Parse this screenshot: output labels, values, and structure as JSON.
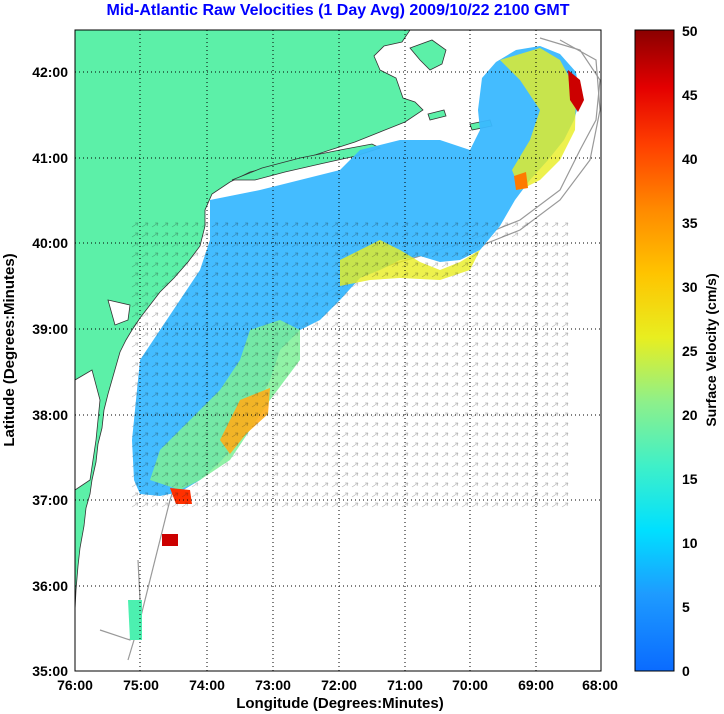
{
  "title": "Mid-Atlantic Raw Velocities (1 Day Avg) 2009/10/22 2100 GMT",
  "xlabel": "Longitude (Degrees:Minutes)",
  "ylabel": "Latitude (Degrees:Minutes)",
  "x_ticks": [
    "76:00",
    "75:00",
    "74:00",
    "73:00",
    "72:00",
    "71:00",
    "70:00",
    "69:00",
    "68:00"
  ],
  "y_ticks": [
    "35:00",
    "36:00",
    "37:00",
    "38:00",
    "39:00",
    "40:00",
    "41:00",
    "42:00"
  ],
  "colorbar": {
    "label": "Surface Velocity (cm/s)",
    "ticks": [
      "0",
      "5",
      "10",
      "15",
      "20",
      "25",
      "30",
      "35",
      "40",
      "45",
      "50"
    ],
    "range": [
      0,
      50
    ],
    "colormap": "jet"
  },
  "colors": {
    "land": "#5cf0a8",
    "ocean": "#ffffff",
    "title": "#0000ff",
    "grid": "#000000",
    "bathymetry": "#999999"
  },
  "map": {
    "lon_range": [
      -76,
      -68
    ],
    "lat_range": [
      35,
      42.5
    ],
    "grid": "dotted",
    "vectors": "black arrows"
  }
}
